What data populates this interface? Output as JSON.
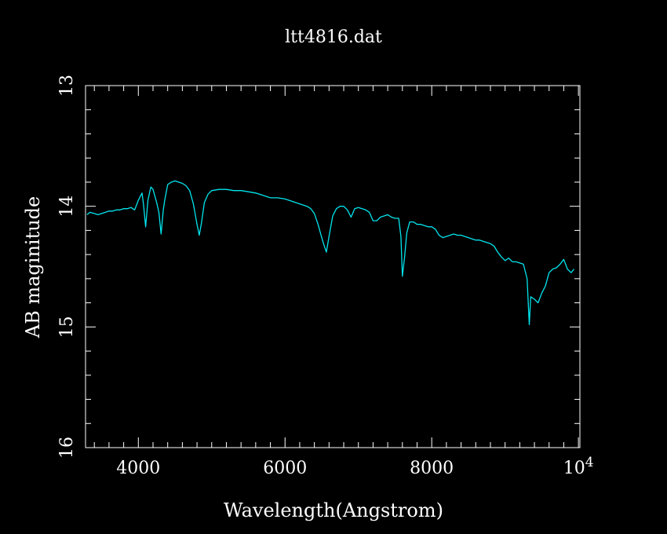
{
  "chart_data": {
    "type": "line",
    "title": "ltt4816.dat",
    "xlabel": "Wavelength(Angstrom)",
    "ylabel": "AB maginitude",
    "xlim": [
      3280,
      10020
    ],
    "ylim": [
      13.0,
      16.0
    ],
    "y_inverted": true,
    "grid": false,
    "legend": "none",
    "x_ticks": [
      {
        "value": 4000,
        "label": "4000"
      },
      {
        "value": 6000,
        "label": "6000"
      },
      {
        "value": 8000,
        "label": "8000"
      },
      {
        "value": 10000,
        "label": "10",
        "exponent": "4"
      }
    ],
    "y_ticks": [
      {
        "value": 13,
        "label": "13"
      },
      {
        "value": 14,
        "label": "14"
      },
      {
        "value": 15,
        "label": "15"
      },
      {
        "value": 16,
        "label": "16"
      }
    ],
    "series": [
      {
        "color": "#00e5ee",
        "x": [
          3300,
          3340,
          3400,
          3450,
          3500,
          3550,
          3600,
          3650,
          3700,
          3750,
          3800,
          3850,
          3900,
          3950,
          4000,
          4050,
          4070,
          4100,
          4130,
          4170,
          4200,
          4250,
          4280,
          4310,
          4340,
          4360,
          4400,
          4450,
          4500,
          4550,
          4600,
          4650,
          4700,
          4750,
          4800,
          4830,
          4860,
          4900,
          4950,
          5000,
          5100,
          5200,
          5300,
          5400,
          5500,
          5600,
          5700,
          5800,
          5900,
          6000,
          6100,
          6200,
          6300,
          6350,
          6400,
          6450,
          6500,
          6530,
          6563,
          6600,
          6650,
          6700,
          6750,
          6800,
          6850,
          6900,
          6950,
          7000,
          7050,
          7100,
          7150,
          7200,
          7250,
          7300,
          7350,
          7400,
          7450,
          7500,
          7550,
          7580,
          7600,
          7630,
          7660,
          7700,
          7750,
          7800,
          7850,
          7900,
          7950,
          8000,
          8050,
          8100,
          8150,
          8200,
          8250,
          8300,
          8350,
          8400,
          8450,
          8500,
          8550,
          8600,
          8650,
          8700,
          8750,
          8800,
          8850,
          8900,
          8950,
          9000,
          9050,
          9100,
          9150,
          9200,
          9250,
          9300,
          9330,
          9350,
          9400,
          9450,
          9500,
          9550,
          9600,
          9650,
          9700,
          9750,
          9800,
          9850,
          9900,
          9940
        ],
        "y": [
          14.07,
          14.05,
          14.06,
          14.07,
          14.06,
          14.05,
          14.04,
          14.04,
          14.03,
          14.03,
          14.02,
          14.02,
          14.01,
          14.03,
          13.95,
          13.89,
          13.98,
          14.17,
          13.95,
          13.84,
          13.86,
          13.97,
          14.05,
          14.23,
          14.03,
          13.95,
          13.82,
          13.8,
          13.79,
          13.8,
          13.81,
          13.83,
          13.87,
          13.98,
          14.15,
          14.24,
          14.14,
          13.97,
          13.9,
          13.87,
          13.86,
          13.86,
          13.87,
          13.87,
          13.88,
          13.89,
          13.91,
          13.93,
          13.93,
          13.94,
          13.96,
          13.98,
          14.0,
          14.02,
          14.06,
          14.15,
          14.26,
          14.32,
          14.38,
          14.25,
          14.08,
          14.02,
          14.0,
          14.0,
          14.03,
          14.09,
          14.02,
          14.01,
          14.02,
          14.03,
          14.05,
          14.12,
          14.12,
          14.09,
          14.08,
          14.07,
          14.09,
          14.1,
          14.1,
          14.25,
          14.58,
          14.42,
          14.22,
          14.13,
          14.13,
          14.15,
          14.15,
          14.16,
          14.17,
          14.17,
          14.19,
          14.24,
          14.26,
          14.25,
          14.24,
          14.23,
          14.24,
          14.24,
          14.25,
          14.26,
          14.27,
          14.28,
          14.28,
          14.29,
          14.3,
          14.31,
          14.33,
          14.38,
          14.42,
          14.45,
          14.43,
          14.46,
          14.46,
          14.47,
          14.48,
          14.6,
          14.98,
          14.75,
          14.77,
          14.8,
          14.72,
          14.66,
          14.55,
          14.52,
          14.51,
          14.48,
          14.44,
          14.52,
          14.55,
          14.52
        ]
      }
    ]
  }
}
